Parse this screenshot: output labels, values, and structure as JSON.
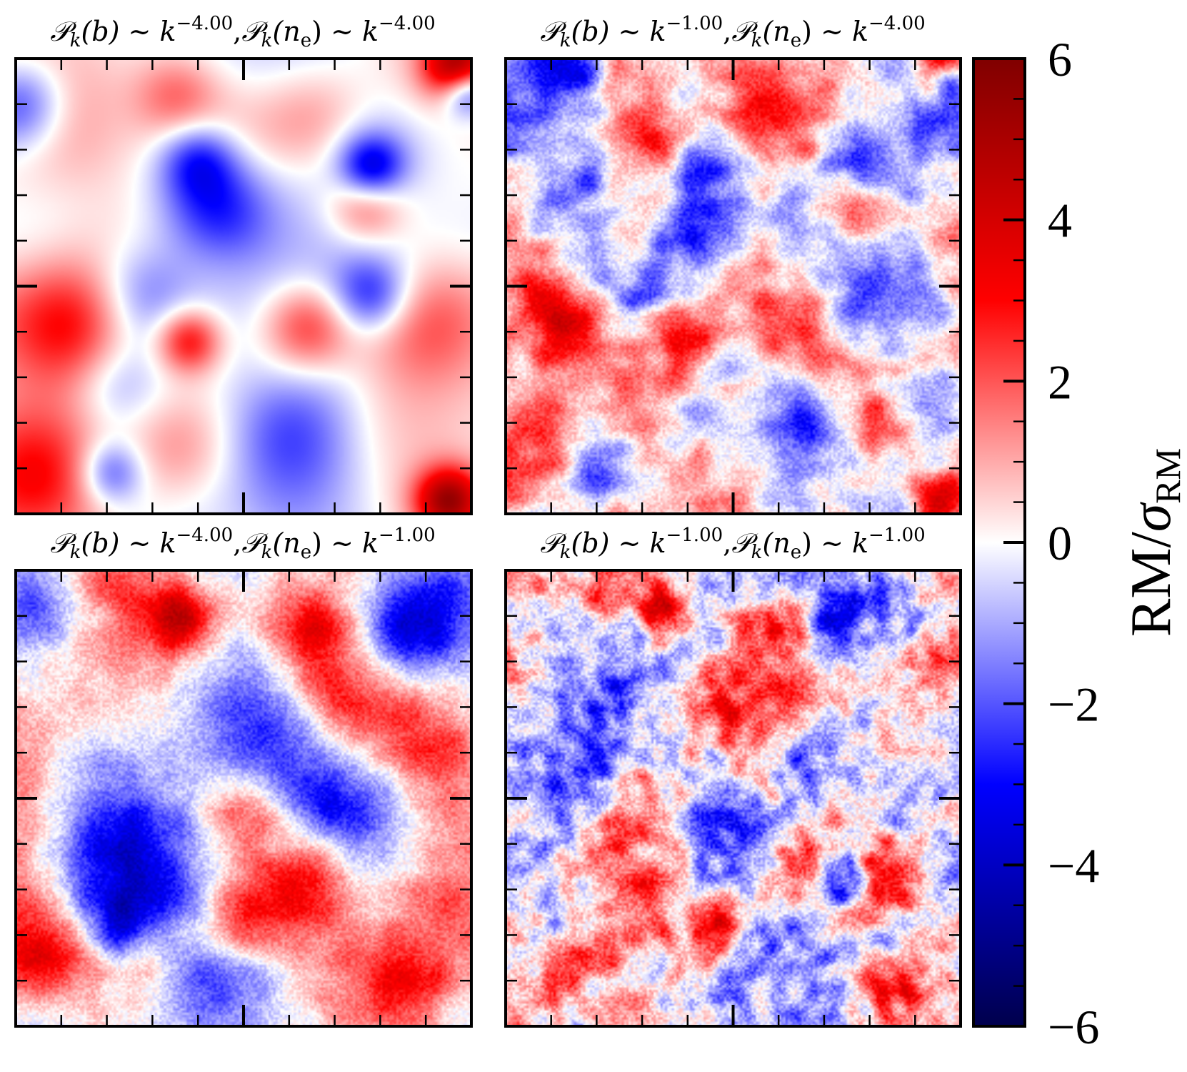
{
  "figure": {
    "colormap": "seismic",
    "colors": {
      "min": "#00004c",
      "mid": "#ffffff",
      "max": "#800000"
    }
  },
  "chart_data": {
    "type": "heatmap",
    "colorbar": {
      "label_main": "RM",
      "label_sep": "/",
      "label_sigma": "σ",
      "label_sub": "RM",
      "range": [
        -6,
        6
      ],
      "ticks": [
        6,
        4,
        2,
        0,
        -2,
        -4,
        -6
      ],
      "tick_labels": [
        "6",
        "4",
        "2",
        "0",
        "−2",
        "−4",
        "−6"
      ],
      "minor_step": 0.5
    },
    "panels": [
      {
        "id": "tl",
        "title": {
          "b_lhs": "𝒫",
          "b_sub": "k",
          "b_arg": "(b)",
          "sim": "∼ k",
          "b_exp": "−4.00",
          "comma": ",",
          "n_lhs": "𝒫",
          "n_sub": "k",
          "n_arg": "(n",
          "n_arg_sub": "e",
          "n_arg_close": ")",
          "sim2": "∼ k",
          "n_exp": "−4.00"
        },
        "b_slope": -4.0,
        "ne_slope": -4.0,
        "value_range": [
          -6,
          6
        ],
        "features": [
          {
            "u": 0.44,
            "v": 0.33,
            "value": -3.4,
            "size": 0.09
          },
          {
            "u": 0.4,
            "v": 0.22,
            "value": -2.6,
            "size": 0.06
          },
          {
            "u": 0.78,
            "v": 0.24,
            "value": -3.4,
            "size": 0.05
          },
          {
            "u": 0.78,
            "v": 0.52,
            "value": -2.6,
            "size": 0.06
          },
          {
            "u": 0.28,
            "v": 0.51,
            "value": -1.8,
            "size": 0.08
          },
          {
            "u": 0.21,
            "v": 0.91,
            "value": -2.4,
            "size": 0.05
          },
          {
            "u": 0.6,
            "v": 0.84,
            "value": -1.6,
            "size": 0.1
          },
          {
            "u": 0.01,
            "v": 0.1,
            "value": -2.8,
            "size": 0.07
          },
          {
            "u": 0.99,
            "v": 0.07,
            "value": -3.6,
            "size": 0.04
          },
          {
            "u": 0.22,
            "v": 0.72,
            "value": -1.2,
            "size": 0.07
          },
          {
            "u": 0.97,
            "v": 0.02,
            "value": 4.8,
            "size": 0.05
          },
          {
            "u": 0.95,
            "v": 0.97,
            "value": 4.6,
            "size": 0.05
          },
          {
            "u": 0.13,
            "v": 0.59,
            "value": 3.0,
            "size": 0.1
          },
          {
            "u": 0.38,
            "v": 0.62,
            "value": 3.2,
            "size": 0.05
          },
          {
            "u": 0.64,
            "v": 0.59,
            "value": 2.6,
            "size": 0.07
          },
          {
            "u": 0.77,
            "v": 0.32,
            "value": 2.4,
            "size": 0.06
          },
          {
            "u": 0.35,
            "v": 0.08,
            "value": 2.0,
            "size": 0.07
          },
          {
            "u": 0.65,
            "v": 0.13,
            "value": 1.6,
            "size": 0.09
          },
          {
            "u": 0.05,
            "v": 0.9,
            "value": 2.6,
            "size": 0.1
          },
          {
            "u": 0.36,
            "v": 0.85,
            "value": 1.4,
            "size": 0.09
          },
          {
            "u": 0.9,
            "v": 0.6,
            "value": 1.0,
            "size": 0.1
          },
          {
            "u": 0.1,
            "v": 0.15,
            "value": 1.0,
            "size": 0.1
          }
        ]
      },
      {
        "id": "tr",
        "title": {
          "b_lhs": "𝒫",
          "b_sub": "k",
          "b_arg": "(b)",
          "sim": "∼ k",
          "b_exp": "−1.00",
          "comma": ",",
          "n_lhs": "𝒫",
          "n_sub": "k",
          "n_arg": "(n",
          "n_arg_sub": "e",
          "n_arg_close": ")",
          "sim2": "∼ k",
          "n_exp": "−4.00"
        },
        "b_slope": -1.0,
        "ne_slope": -4.0,
        "value_range": [
          -6,
          6
        ],
        "features": [
          {
            "u": 0.44,
            "v": 0.33,
            "value": -3.0,
            "size": 0.08
          },
          {
            "u": 0.4,
            "v": 0.22,
            "value": -2.6,
            "size": 0.05
          },
          {
            "u": 0.78,
            "v": 0.24,
            "value": -3.4,
            "size": 0.05
          },
          {
            "u": 0.78,
            "v": 0.52,
            "value": -2.4,
            "size": 0.06
          },
          {
            "u": 0.28,
            "v": 0.51,
            "value": -2.0,
            "size": 0.08
          },
          {
            "u": 0.21,
            "v": 0.91,
            "value": -2.6,
            "size": 0.05
          },
          {
            "u": 0.6,
            "v": 0.84,
            "value": -1.6,
            "size": 0.1
          },
          {
            "u": 0.14,
            "v": 0.02,
            "value": -2.6,
            "size": 0.05
          },
          {
            "u": 0.98,
            "v": 0.05,
            "value": -3.2,
            "size": 0.03
          },
          {
            "u": 0.97,
            "v": 0.02,
            "value": 4.6,
            "size": 0.05
          },
          {
            "u": 0.95,
            "v": 0.97,
            "value": 4.0,
            "size": 0.05
          },
          {
            "u": 0.13,
            "v": 0.59,
            "value": 3.2,
            "size": 0.09
          },
          {
            "u": 0.38,
            "v": 0.62,
            "value": 3.0,
            "size": 0.05
          },
          {
            "u": 0.64,
            "v": 0.59,
            "value": 2.2,
            "size": 0.07
          },
          {
            "u": 0.77,
            "v": 0.32,
            "value": 3.0,
            "size": 0.05
          },
          {
            "u": 0.35,
            "v": 0.2,
            "value": 2.6,
            "size": 0.04
          },
          {
            "u": 0.65,
            "v": 0.13,
            "value": 1.6,
            "size": 0.08
          },
          {
            "u": 0.05,
            "v": 0.9,
            "value": 2.4,
            "size": 0.1
          },
          {
            "u": 0.36,
            "v": 0.85,
            "value": 1.2,
            "size": 0.09
          },
          {
            "u": 0.9,
            "v": 0.58,
            "value": 1.2,
            "size": 0.1
          }
        ]
      },
      {
        "id": "bl",
        "title": {
          "b_lhs": "𝒫",
          "b_sub": "k",
          "b_arg": "(b)",
          "sim": "∼ k",
          "b_exp": "−4.00",
          "comma": ",",
          "n_lhs": "𝒫",
          "n_sub": "k",
          "n_arg": "(n",
          "n_arg_sub": "e",
          "n_arg_close": ")",
          "sim2": "∼ k",
          "n_exp": "−1.00"
        },
        "b_slope": -4.0,
        "ne_slope": -1.0,
        "value_range": [
          -6,
          6
        ],
        "features": [
          {
            "u": 0.88,
            "v": 0.1,
            "value": -3.6,
            "size": 0.09
          },
          {
            "u": 0.75,
            "v": 0.58,
            "value": -3.0,
            "size": 0.1
          },
          {
            "u": 0.6,
            "v": 0.45,
            "value": -2.2,
            "size": 0.09
          },
          {
            "u": 0.2,
            "v": 0.6,
            "value": -2.0,
            "size": 0.1
          },
          {
            "u": 0.24,
            "v": 0.78,
            "value": -2.6,
            "size": 0.05
          },
          {
            "u": 0.05,
            "v": 0.1,
            "value": -2.0,
            "size": 0.07
          },
          {
            "u": 0.4,
            "v": 0.88,
            "value": -1.4,
            "size": 0.11
          },
          {
            "u": 0.5,
            "v": 0.3,
            "value": -1.2,
            "size": 0.1
          },
          {
            "u": 0.36,
            "v": 0.1,
            "value": 3.6,
            "size": 0.05
          },
          {
            "u": 0.22,
            "v": 0.08,
            "value": 2.2,
            "size": 0.1
          },
          {
            "u": 0.65,
            "v": 0.13,
            "value": 2.8,
            "size": 0.07
          },
          {
            "u": 0.48,
            "v": 0.76,
            "value": 3.8,
            "size": 0.07
          },
          {
            "u": 0.52,
            "v": 0.54,
            "value": 2.8,
            "size": 0.07
          },
          {
            "u": 0.64,
            "v": 0.66,
            "value": 3.0,
            "size": 0.07
          },
          {
            "u": 0.86,
            "v": 0.89,
            "value": 3.2,
            "size": 0.08
          },
          {
            "u": 0.05,
            "v": 0.85,
            "value": 2.6,
            "size": 0.08
          },
          {
            "u": 0.3,
            "v": 0.83,
            "value": 2.6,
            "size": 0.06
          },
          {
            "u": 0.1,
            "v": 0.34,
            "value": 1.4,
            "size": 0.11
          },
          {
            "u": 0.9,
            "v": 0.35,
            "value": 1.2,
            "size": 0.1
          },
          {
            "u": 0.7,
            "v": 0.28,
            "value": 1.6,
            "size": 0.07
          }
        ]
      },
      {
        "id": "br",
        "title": {
          "b_lhs": "𝒫",
          "b_sub": "k",
          "b_arg": "(b)",
          "sim": "∼ k",
          "b_exp": "−1.00",
          "comma": ",",
          "n_lhs": "𝒫",
          "n_sub": "k",
          "n_arg": "(n",
          "n_arg_sub": "e",
          "n_arg_close": ")",
          "sim2": "∼ k",
          "n_exp": "−1.00"
        },
        "b_slope": -1.0,
        "ne_slope": -1.0,
        "value_range": [
          -6,
          6
        ],
        "features": [
          {
            "u": 0.72,
            "v": 0.11,
            "value": -3.4,
            "size": 0.05
          },
          {
            "u": 0.88,
            "v": 0.1,
            "value": -2.8,
            "size": 0.07
          },
          {
            "u": 0.74,
            "v": 0.68,
            "value": -3.2,
            "size": 0.04
          },
          {
            "u": 0.45,
            "v": 0.55,
            "value": -1.8,
            "size": 0.08
          },
          {
            "u": 0.2,
            "v": 0.45,
            "value": -1.6,
            "size": 0.08
          },
          {
            "u": 0.65,
            "v": 0.4,
            "value": -1.8,
            "size": 0.07
          },
          {
            "u": 0.3,
            "v": 0.85,
            "value": -1.6,
            "size": 0.07
          },
          {
            "u": 0.88,
            "v": 0.6,
            "value": -1.4,
            "size": 0.07
          },
          {
            "u": 0.34,
            "v": 0.09,
            "value": 4.4,
            "size": 0.04
          },
          {
            "u": 0.2,
            "v": 0.06,
            "value": 2.2,
            "size": 0.06
          },
          {
            "u": 0.46,
            "v": 0.77,
            "value": 4.2,
            "size": 0.05
          },
          {
            "u": 0.83,
            "v": 0.66,
            "value": 3.2,
            "size": 0.06
          },
          {
            "u": 0.64,
            "v": 0.66,
            "value": 2.6,
            "size": 0.06
          },
          {
            "u": 0.62,
            "v": 0.12,
            "value": 2.2,
            "size": 0.05
          },
          {
            "u": 0.08,
            "v": 0.25,
            "value": 1.6,
            "size": 0.07
          },
          {
            "u": 0.3,
            "v": 0.55,
            "value": 1.8,
            "size": 0.06
          },
          {
            "u": 0.82,
            "v": 0.91,
            "value": 2.4,
            "size": 0.06
          },
          {
            "u": 0.1,
            "v": 0.88,
            "value": 2.0,
            "size": 0.06
          },
          {
            "u": 0.5,
            "v": 0.3,
            "value": 1.4,
            "size": 0.07
          },
          {
            "u": 0.95,
            "v": 0.2,
            "value": 1.6,
            "size": 0.05
          }
        ]
      }
    ]
  }
}
